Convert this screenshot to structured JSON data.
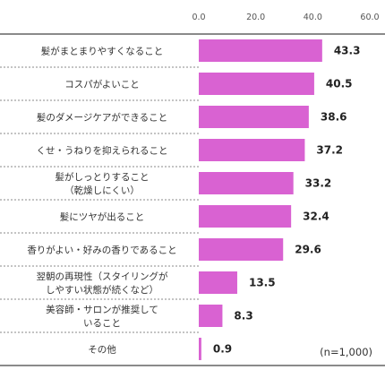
{
  "chart_data": {
    "type": "bar",
    "orientation": "horizontal",
    "categories": [
      [
        "髪がまとまりやすくなること"
      ],
      [
        "コスパがよいこと"
      ],
      [
        "髪のダメージケアができること"
      ],
      [
        "くせ・うねりを抑えられること"
      ],
      [
        "髪がしっとりすること",
        "（乾燥しにくい）"
      ],
      [
        "髪にツヤが出ること"
      ],
      [
        "香りがよい・好みの香りであること"
      ],
      [
        "翌朝の再現性（スタイリングが",
        "しやすい状態が続くなど）"
      ],
      [
        "美容師・サロンが推奨して",
        "いること"
      ],
      [
        "その他"
      ]
    ],
    "values": [
      43.3,
      40.5,
      38.6,
      37.2,
      33.2,
      32.4,
      29.6,
      13.5,
      8.3,
      0.9
    ],
    "value_labels": [
      "43.3",
      "40.5",
      "38.6",
      "37.2",
      "33.2",
      "32.4",
      "29.6",
      "13.5",
      "8.3",
      "0.9"
    ],
    "xticks": [
      "0.0",
      "20.0",
      "40.0",
      "60.0"
    ],
    "xtick_values": [
      0,
      20,
      40,
      60
    ],
    "xlim": [
      0,
      60
    ],
    "bar_color": "#d962d2",
    "grid": false,
    "note": "(n=1,000)"
  }
}
